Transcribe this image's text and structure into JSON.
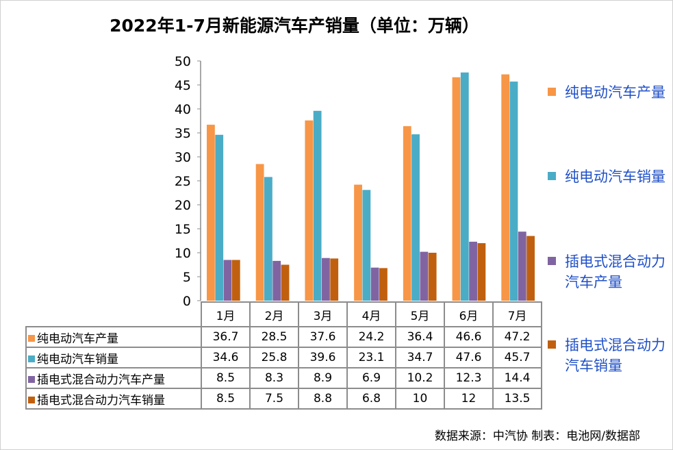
{
  "chart_data": {
    "type": "bar",
    "title": "2022年1-7月新能源汽车产销量（单位：万辆）",
    "categories": [
      "1月",
      "2月",
      "3月",
      "4月",
      "5月",
      "6月",
      "7月"
    ],
    "ylim": [
      0,
      50
    ],
    "yticks": [
      0,
      5,
      10,
      15,
      20,
      25,
      30,
      35,
      40,
      45,
      50
    ],
    "grid": false,
    "legend_placement": "right",
    "series": [
      {
        "name": "纯电动汽车产量",
        "color": "#F79646",
        "values": [
          36.7,
          28.5,
          37.6,
          24.2,
          36.4,
          46.6,
          47.2
        ]
      },
      {
        "name": "纯电动汽车销量",
        "color": "#4BACC6",
        "values": [
          34.6,
          25.8,
          39.6,
          23.1,
          34.7,
          47.6,
          45.7
        ]
      },
      {
        "name": "插电式混合动力汽车产量",
        "color": "#8064A2",
        "values": [
          8.5,
          8.3,
          8.9,
          6.9,
          10.2,
          12.3,
          14.4
        ]
      },
      {
        "name": "插电式混合动力汽车销量",
        "color": "#C0600F",
        "values": [
          8.5,
          7.5,
          8.8,
          6.8,
          10,
          12,
          13.5
        ]
      }
    ]
  },
  "source": "数据来源：中汽协  制表：电池网/数据部",
  "colors": {
    "legend_text": "#2050c8",
    "table_border": "#8c8c8c"
  }
}
